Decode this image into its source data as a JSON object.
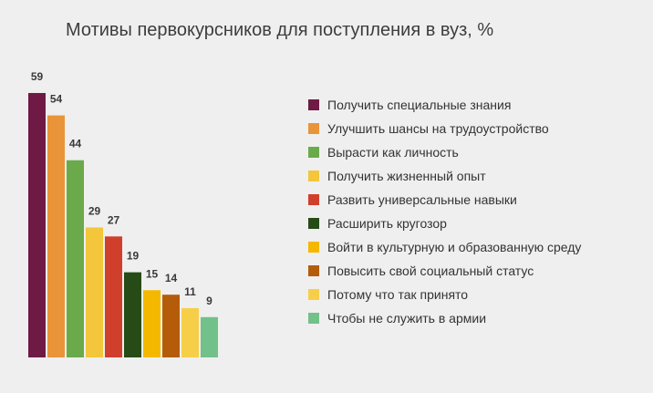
{
  "chart_data": {
    "type": "bar",
    "title": "Мотивы первокурсников для поступления в вуз, %",
    "xlabel": "",
    "ylabel": "",
    "ylim": [
      0,
      59
    ],
    "grid": false,
    "legend_position": "right",
    "value_labels": [
      "59",
      "54",
      "44",
      "29",
      "27",
      "19",
      "15",
      "14",
      "11",
      "9"
    ],
    "categories": [
      "Получить специальные знания",
      "Улучшить шансы на трудоустройство",
      "Вырасти как личность",
      "Получить жизненный опыт",
      "Развить универсальные навыки",
      "Расширить кругозор",
      "Войти в культурную и образованную среду",
      "Повысить свой социальный статус",
      "Потому что так принято",
      "Чтобы не служить в армии"
    ],
    "values": [
      59,
      54,
      44,
      29,
      27,
      19,
      15,
      14,
      11,
      9
    ],
    "colors": [
      "#6f1a45",
      "#e99438",
      "#6aaa4b",
      "#f3c63b",
      "#cf3f2b",
      "#264b17",
      "#f5b800",
      "#b45c0a",
      "#f7ce48",
      "#72c08a"
    ]
  }
}
